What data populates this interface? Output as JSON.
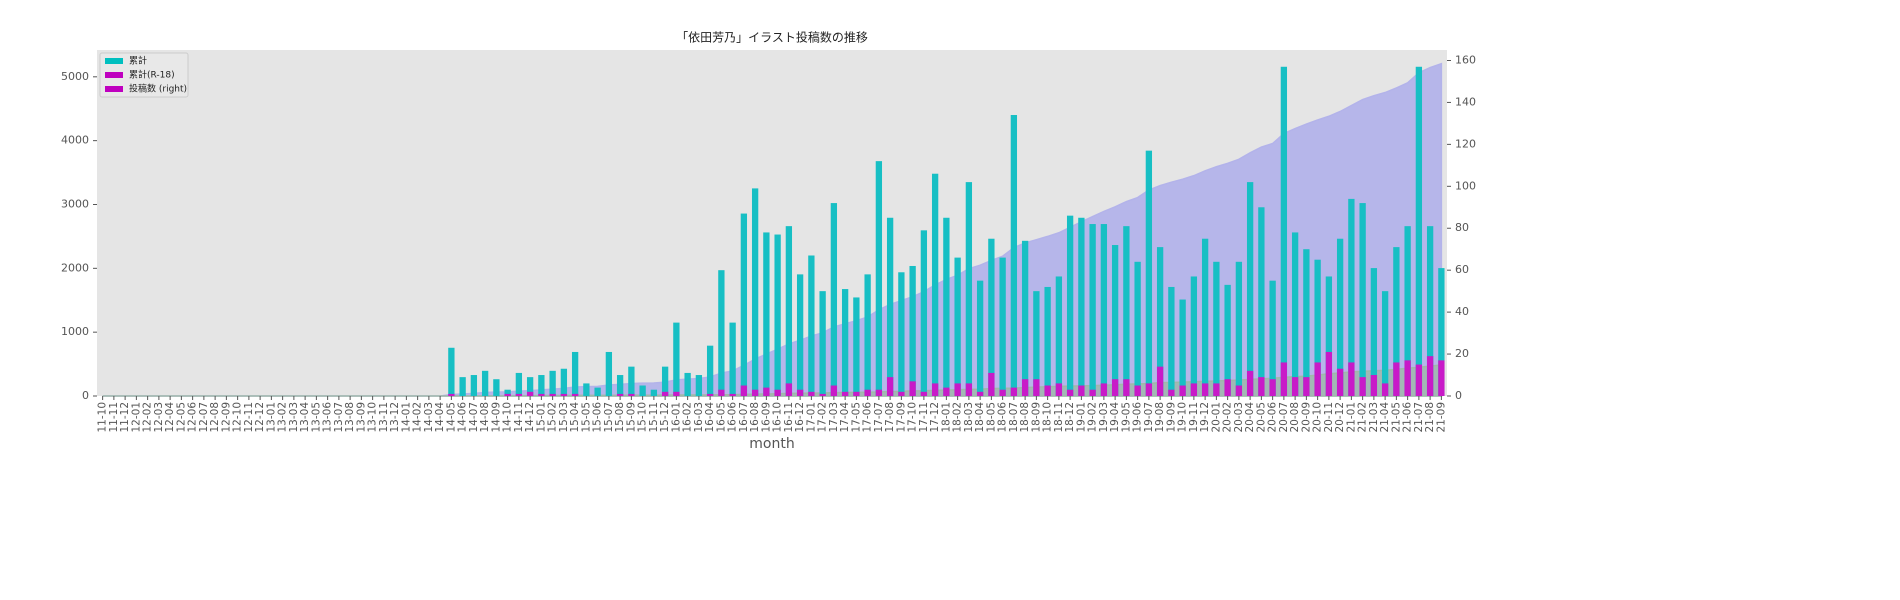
{
  "chart_data": {
    "type": "bar",
    "title": "「依田芳乃」イラスト投稿数の推移",
    "x_label": "month",
    "categories": [
      "11-10",
      "11-11",
      "11-12",
      "12-01",
      "12-02",
      "12-03",
      "12-04",
      "12-05",
      "12-06",
      "12-07",
      "12-08",
      "12-09",
      "12-10",
      "12-11",
      "12-12",
      "13-01",
      "13-02",
      "13-03",
      "13-04",
      "13-05",
      "13-06",
      "13-07",
      "13-08",
      "13-09",
      "13-10",
      "13-11",
      "13-12",
      "14-01",
      "14-02",
      "14-03",
      "14-04",
      "14-05",
      "14-06",
      "14-07",
      "14-08",
      "14-09",
      "14-10",
      "14-11",
      "14-12",
      "15-01",
      "15-02",
      "15-03",
      "15-04",
      "15-05",
      "15-06",
      "15-07",
      "15-08",
      "15-09",
      "15-10",
      "15-11",
      "15-12",
      "16-01",
      "16-02",
      "16-03",
      "16-04",
      "16-05",
      "16-06",
      "16-07",
      "16-08",
      "16-09",
      "16-10",
      "16-11",
      "16-12",
      "17-01",
      "17-02",
      "17-03",
      "17-04",
      "17-05",
      "17-06",
      "17-07",
      "17-08",
      "17-09",
      "17-10",
      "17-11",
      "17-12",
      "18-01",
      "18-02",
      "18-03",
      "18-04",
      "18-05",
      "18-06",
      "18-07",
      "18-08",
      "18-09",
      "18-10",
      "18-11",
      "18-12",
      "19-01",
      "19-02",
      "19-03",
      "19-04",
      "19-05",
      "19-06",
      "19-07",
      "19-08",
      "19-09",
      "19-10",
      "19-11",
      "19-12",
      "20-01",
      "20-02",
      "20-03",
      "20-04",
      "20-05",
      "20-06",
      "20-07",
      "20-08",
      "20-09",
      "20-10",
      "20-11",
      "20-12",
      "21-01",
      "21-02",
      "21-03",
      "21-04",
      "21-05",
      "21-06",
      "21-07",
      "21-08",
      "21-09"
    ],
    "legend": [
      {
        "label": "累計",
        "color": "#00bfbf"
      },
      {
        "label": "累計(R-18)",
        "color": "#bf00bf"
      },
      {
        "label": "投稿数 (right)",
        "color": "#bf00bf"
      }
    ],
    "series": [
      {
        "color": "#17bfc4",
        "area_color": "#b3b3ea",
        "axis": "y2",
        "values": [
          0,
          0,
          0,
          0,
          0,
          0,
          0,
          0,
          0,
          0,
          0,
          0,
          0,
          0,
          0,
          0,
          0,
          0,
          0,
          0,
          0,
          0,
          0,
          0,
          0,
          0,
          0,
          0,
          0,
          0,
          0,
          23,
          9,
          10,
          12,
          8,
          3,
          11,
          9,
          10,
          12,
          13,
          21,
          6,
          4,
          21,
          10,
          14,
          5,
          3,
          14,
          35,
          11,
          10,
          24,
          60,
          35,
          87,
          99,
          78,
          77,
          81,
          58,
          67,
          50,
          92,
          51,
          47,
          58,
          112,
          85,
          59,
          62,
          79,
          106,
          85,
          66,
          102,
          55,
          75,
          66,
          134,
          74,
          50,
          52,
          57,
          86,
          85,
          82,
          82,
          72,
          81,
          64,
          117,
          71,
          52,
          46,
          57,
          75,
          64,
          53,
          64,
          102,
          90,
          55,
          157,
          78,
          70,
          65,
          57,
          75,
          94,
          92,
          61,
          50,
          71,
          81,
          157,
          81,
          61
        ]
      },
      {
        "color": "#c81ac8",
        "area_color": "#9fb8a8",
        "axis": "y2",
        "values": [
          0,
          0,
          0,
          0,
          0,
          0,
          0,
          0,
          0,
          0,
          0,
          0,
          0,
          0,
          0,
          0,
          0,
          0,
          0,
          0,
          0,
          0,
          0,
          0,
          0,
          0,
          0,
          0,
          0,
          0,
          0,
          1,
          0,
          0,
          0,
          0,
          1,
          1,
          2,
          1,
          1,
          1,
          1,
          0,
          0,
          0,
          1,
          1,
          0,
          0,
          2,
          2,
          0,
          0,
          1,
          3,
          1,
          5,
          3,
          4,
          3,
          6,
          3,
          2,
          1,
          5,
          2,
          2,
          3,
          3,
          9,
          2,
          7,
          2,
          6,
          4,
          6,
          6,
          2,
          11,
          3,
          4,
          8,
          8,
          5,
          6,
          3,
          5,
          3,
          6,
          8,
          8,
          5,
          6,
          14,
          3,
          5,
          6,
          6,
          6,
          8,
          5,
          12,
          9,
          8,
          16,
          9,
          9,
          16,
          21,
          13,
          16,
          9,
          10,
          6,
          16,
          17,
          15,
          19,
          17
        ]
      }
    ],
    "ylim": [
      0,
      5420
    ],
    "yticks": [
      0,
      1000,
      2000,
      3000,
      4000,
      5000
    ],
    "y2lim": [
      0,
      165
    ],
    "y2ticks": [
      0,
      20,
      40,
      60,
      80,
      100,
      120,
      140,
      160
    ],
    "grid": false,
    "legend_position": "upper left"
  }
}
